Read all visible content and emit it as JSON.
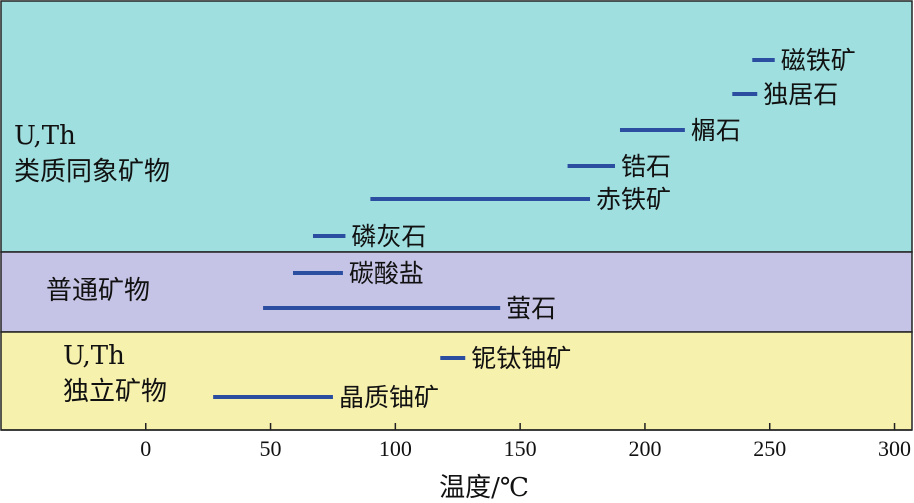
{
  "chart_data": {
    "type": "range-bar",
    "xlabel": "温度/℃",
    "xlim": [
      -58,
      307
    ],
    "xticks": [
      0,
      50,
      100,
      150,
      200,
      250,
      300
    ],
    "bar_color": "#2b4ea0",
    "groups": [
      {
        "label_lines": [
          "U,Th",
          "类质同象矿物"
        ],
        "color": "#a0dfdf",
        "items": [
          {
            "label": "磁铁矿",
            "range": [
              243,
              252
            ]
          },
          {
            "label": "独居石",
            "range": [
              235,
              245
            ]
          },
          {
            "label": "榍石",
            "range": [
              190,
              216
            ]
          },
          {
            "label": "锆石",
            "range": [
              169,
              188
            ]
          },
          {
            "label": "赤铁矿",
            "range": [
              90,
              178
            ]
          },
          {
            "label": "磷灰石",
            "range": [
              67,
              80
            ]
          }
        ]
      },
      {
        "label_lines": [
          "普通矿物"
        ],
        "color": "#c6c4e6",
        "items": [
          {
            "label": "碳酸盐",
            "range": [
              59,
              79
            ]
          },
          {
            "label": "萤石",
            "range": [
              47,
              142
            ]
          }
        ]
      },
      {
        "label_lines": [
          "U,Th",
          "独立矿物"
        ],
        "color": "#f7f1ae",
        "items": [
          {
            "label": "铌钛铀矿",
            "range": [
              118,
              128
            ]
          },
          {
            "label": "晶质铀矿",
            "range": [
              27,
              75
            ]
          }
        ]
      }
    ]
  }
}
